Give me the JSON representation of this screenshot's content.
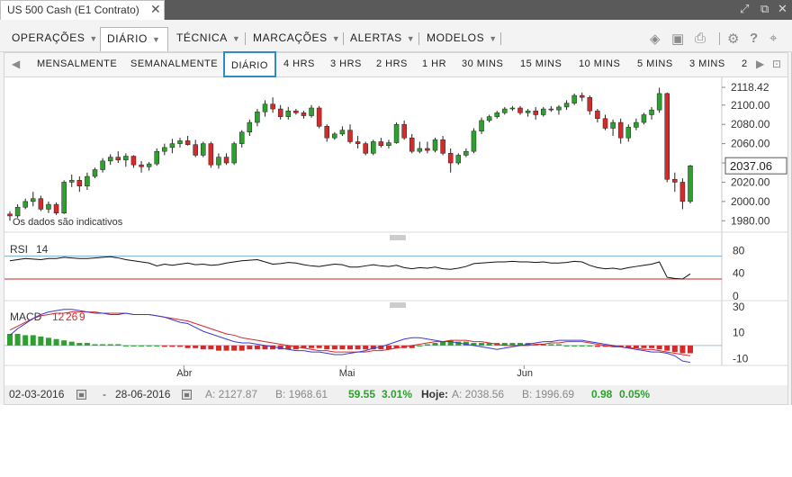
{
  "window": {
    "title": "US 500 Cash (E1 Contrato)",
    "close_symbol": "✕"
  },
  "menu": [
    {
      "label": "OPERAÇÕES",
      "active": false
    },
    {
      "label": "DIÁRIO",
      "active": true
    },
    {
      "label": "TÉCNICA",
      "active": false
    },
    {
      "label": "MARCAÇÕES",
      "active": false
    },
    {
      "label": "ALERTAS",
      "active": false
    },
    {
      "label": "MODELOS",
      "active": false
    }
  ],
  "timeframes": [
    "MENSALMENTE",
    "SEMANALMENTE",
    "DIÁRIO",
    "4 HRS",
    "3 HRS",
    "2 HRS",
    "1 HR",
    "30 MINS",
    "15 MINS",
    "10 MINS",
    "5 MINS",
    "3 MINS",
    "2"
  ],
  "active_timeframe": "DIÁRIO",
  "colors": {
    "up": "#2ea02e",
    "down": "#d42a2a",
    "accent": "#2f8ccb"
  },
  "chart_data": [
    {
      "type": "candlestick",
      "panel": "price",
      "note": "Os dados são indicativos",
      "ylim": [
        1970,
        2125
      ],
      "y_ticks": [
        "2118.42",
        "2100.00",
        "2080.00",
        "2060.00",
        "2040.00",
        "2020.00",
        "2000.00",
        "1980.00"
      ],
      "y_tick_values": [
        2118.42,
        2100,
        2080,
        2060,
        2040,
        2020,
        2000,
        1980
      ],
      "current_price": "2037.06",
      "current_price_value": 2037.06,
      "x_labels": [
        "Abr",
        "Mai",
        "Jun"
      ],
      "x_label_index": [
        22.5,
        43.5,
        66.5
      ],
      "ohlc": [
        [
          1987,
          1990,
          1980,
          1985
        ],
        [
          1985,
          1997,
          1983,
          1994
        ],
        [
          1994,
          2003,
          1992,
          2000
        ],
        [
          2000,
          2010,
          1995,
          2003
        ],
        [
          2003,
          2006,
          1990,
          1992
        ],
        [
          1992,
          2000,
          1988,
          1997
        ],
        [
          1997,
          1999,
          1986,
          1988
        ],
        [
          1988,
          2022,
          1987,
          2020
        ],
        [
          2020,
          2028,
          2015,
          2022
        ],
        [
          2022,
          2026,
          2010,
          2016
        ],
        [
          2016,
          2030,
          2012,
          2026
        ],
        [
          2026,
          2035,
          2024,
          2033
        ],
        [
          2033,
          2045,
          2030,
          2042
        ],
        [
          2042,
          2049,
          2038,
          2046
        ],
        [
          2046,
          2052,
          2040,
          2043
        ],
        [
          2043,
          2050,
          2036,
          2047
        ],
        [
          2047,
          2048,
          2035,
          2038
        ],
        [
          2038,
          2042,
          2030,
          2036
        ],
        [
          2036,
          2041,
          2032,
          2039
        ],
        [
          2039,
          2055,
          2037,
          2052
        ],
        [
          2052,
          2060,
          2048,
          2056
        ],
        [
          2056,
          2065,
          2050,
          2060
        ],
        [
          2060,
          2066,
          2056,
          2063
        ],
        [
          2063,
          2068,
          2058,
          2059
        ],
        [
          2059,
          2064,
          2046,
          2048
        ],
        [
          2048,
          2062,
          2046,
          2060
        ],
        [
          2060,
          2062,
          2035,
          2038
        ],
        [
          2038,
          2050,
          2034,
          2046
        ],
        [
          2046,
          2050,
          2038,
          2040
        ],
        [
          2040,
          2062,
          2038,
          2060
        ],
        [
          2060,
          2074,
          2056,
          2072
        ],
        [
          2072,
          2085,
          2068,
          2082
        ],
        [
          2082,
          2096,
          2078,
          2093
        ],
        [
          2093,
          2105,
          2088,
          2101
        ],
        [
          2101,
          2108,
          2092,
          2096
        ],
        [
          2096,
          2100,
          2085,
          2088
        ],
        [
          2088,
          2098,
          2085,
          2094
        ],
        [
          2094,
          2096,
          2090,
          2092
        ],
        [
          2092,
          2094,
          2086,
          2089
        ],
        [
          2089,
          2100,
          2087,
          2097
        ],
        [
          2097,
          2099,
          2076,
          2078
        ],
        [
          2078,
          2080,
          2062,
          2066
        ],
        [
          2066,
          2072,
          2064,
          2070
        ],
        [
          2070,
          2078,
          2068,
          2074
        ],
        [
          2074,
          2080,
          2060,
          2062
        ],
        [
          2062,
          2068,
          2055,
          2060
        ],
        [
          2060,
          2062,
          2048,
          2050
        ],
        [
          2050,
          2064,
          2048,
          2062
        ],
        [
          2062,
          2066,
          2056,
          2058
        ],
        [
          2058,
          2064,
          2055,
          2061
        ],
        [
          2061,
          2082,
          2060,
          2080
        ],
        [
          2080,
          2084,
          2064,
          2066
        ],
        [
          2066,
          2070,
          2050,
          2052
        ],
        [
          2052,
          2062,
          2050,
          2055
        ],
        [
          2055,
          2062,
          2050,
          2053
        ],
        [
          2053,
          2066,
          2051,
          2064
        ],
        [
          2064,
          2068,
          2048,
          2050
        ],
        [
          2050,
          2055,
          2030,
          2040
        ],
        [
          2040,
          2050,
          2038,
          2048
        ],
        [
          2048,
          2055,
          2046,
          2052
        ],
        [
          2052,
          2076,
          2050,
          2073
        ],
        [
          2073,
          2087,
          2070,
          2084
        ],
        [
          2084,
          2090,
          2082,
          2088
        ],
        [
          2088,
          2094,
          2086,
          2092
        ],
        [
          2092,
          2098,
          2090,
          2096
        ],
        [
          2096,
          2099,
          2094,
          2097
        ],
        [
          2097,
          2099,
          2090,
          2092
        ],
        [
          2092,
          2096,
          2088,
          2094
        ],
        [
          2094,
          2098,
          2085,
          2090
        ],
        [
          2090,
          2098,
          2088,
          2096
        ],
        [
          2096,
          2099,
          2093,
          2095
        ],
        [
          2095,
          2100,
          2090,
          2098
        ],
        [
          2098,
          2105,
          2095,
          2102
        ],
        [
          2102,
          2112,
          2100,
          2110
        ],
        [
          2110,
          2113,
          2104,
          2108
        ],
        [
          2108,
          2110,
          2090,
          2094
        ],
        [
          2094,
          2096,
          2082,
          2086
        ],
        [
          2086,
          2090,
          2074,
          2076
        ],
        [
          2076,
          2085,
          2068,
          2082
        ],
        [
          2082,
          2086,
          2060,
          2066
        ],
        [
          2066,
          2080,
          2062,
          2077
        ],
        [
          2077,
          2086,
          2074,
          2082
        ],
        [
          2082,
          2092,
          2080,
          2090
        ],
        [
          2090,
          2098,
          2085,
          2095
        ],
        [
          2095,
          2118,
          2092,
          2112
        ],
        [
          2112,
          2113,
          2020,
          2023
        ],
        [
          2023,
          2030,
          2010,
          2020
        ],
        [
          2020,
          2024,
          1992,
          2000
        ],
        [
          2000,
          2038,
          1998,
          2037
        ]
      ]
    },
    {
      "type": "line",
      "panel": "indicator",
      "title": "RSI",
      "params": "14",
      "ylim": [
        0,
        90
      ],
      "y_ticks": [
        "80",
        "40",
        "0"
      ],
      "y_tick_values": [
        80,
        40,
        0
      ],
      "levels": [
        70,
        30
      ],
      "values": [
        62,
        64,
        66,
        65,
        64,
        66,
        66,
        68,
        67,
        66,
        66,
        67,
        68,
        69,
        67,
        64,
        62,
        60,
        58,
        53,
        56,
        54,
        56,
        58,
        55,
        56,
        54,
        55,
        58,
        60,
        62,
        63,
        64,
        60,
        56,
        57,
        59,
        58,
        55,
        53,
        52,
        54,
        56,
        55,
        51,
        51,
        53,
        55,
        53,
        52,
        54,
        50,
        48,
        50,
        49,
        51,
        48,
        47,
        49,
        52,
        57,
        58,
        59,
        60,
        60,
        61,
        60,
        60,
        59,
        60,
        58,
        58,
        59,
        61,
        60,
        54,
        50,
        48,
        49,
        47,
        50,
        52,
        54,
        56,
        60,
        33,
        31,
        30,
        39
      ]
    },
    {
      "type": "macd",
      "panel": "indicator",
      "title": "MACD",
      "params": [
        "12",
        "26",
        "9"
      ],
      "ylim": [
        -14,
        32
      ],
      "y_ticks": [
        "30",
        "10",
        "-10"
      ],
      "y_tick_values": [
        30,
        10,
        -10
      ],
      "macd": [
        8,
        13,
        17,
        21,
        24,
        26,
        27,
        28,
        28,
        27,
        26,
        25,
        25,
        24,
        24,
        25,
        24,
        24,
        24,
        23,
        22,
        20,
        18,
        17,
        14,
        11,
        9,
        7,
        5,
        3,
        2,
        2,
        1,
        0,
        -1,
        -2,
        -3,
        -4,
        -4,
        -5,
        -5,
        -6,
        -7,
        -7,
        -6,
        -5,
        -4,
        -2,
        -1,
        1,
        3,
        5,
        6,
        6,
        5,
        4,
        3,
        3,
        2,
        1,
        0,
        -1,
        -2,
        -3,
        -2,
        -1,
        0,
        1,
        2,
        3,
        3,
        4,
        4,
        4,
        4,
        3,
        2,
        1,
        0,
        -1,
        -2,
        -3,
        -4,
        -5,
        -5,
        -6,
        -8,
        -12,
        -13
      ],
      "signal": [
        12,
        15,
        18,
        21,
        23,
        24,
        25,
        25,
        26,
        26,
        26,
        26,
        25,
        25,
        25,
        25,
        24,
        24,
        24,
        23,
        22,
        21,
        20,
        19,
        17,
        15,
        13,
        11,
        9,
        8,
        6,
        5,
        4,
        3,
        2,
        1,
        0,
        -1,
        -2,
        -3,
        -4,
        -4,
        -5,
        -5,
        -5,
        -5,
        -5,
        -4,
        -4,
        -3,
        -2,
        -1,
        0,
        1,
        2,
        3,
        3,
        4,
        4,
        4,
        3,
        3,
        2,
        1,
        0,
        0,
        0,
        0,
        1,
        1,
        2,
        2,
        3,
        3,
        3,
        2,
        1,
        0,
        -1,
        -1,
        -2,
        -2,
        -3,
        -3,
        -4,
        -5,
        -6,
        -7,
        -8
      ],
      "histogram": [
        9,
        9,
        8,
        8,
        7,
        6,
        5,
        4,
        3,
        2,
        2,
        1,
        1,
        1,
        1,
        0,
        0,
        0,
        0,
        0,
        -1,
        -1,
        -1,
        -2,
        -2,
        -3,
        -3,
        -4,
        -4,
        -4,
        -4,
        -3,
        -3,
        -3,
        -3,
        -3,
        -3,
        -3,
        -2,
        -2,
        -2,
        -3,
        -3,
        -3,
        -3,
        -3,
        -3,
        -3,
        -3,
        -3,
        -2,
        -2,
        -2,
        0,
        1,
        2,
        3,
        4,
        3,
        3,
        2,
        2,
        2,
        2,
        2,
        2,
        2,
        2,
        1,
        1,
        1,
        1,
        0,
        0,
        0,
        0,
        -1,
        -1,
        -1,
        -1,
        -2,
        -2,
        -2,
        -2,
        -3,
        -4,
        -5,
        -6,
        -6
      ]
    }
  ],
  "footer": {
    "from_date": "02-03-2016",
    "to_date": "28-06-2016",
    "dash": "-",
    "range_label": "A: 2127.87",
    "range_low": "B: 1968.61",
    "change": "59.55",
    "change_pct": "3.01%",
    "today_label": "Hoje:",
    "today_high": "A: 2038.56",
    "today_low": "B: 1996.69",
    "today_change": "0.98",
    "today_change_pct": "0.05%"
  }
}
